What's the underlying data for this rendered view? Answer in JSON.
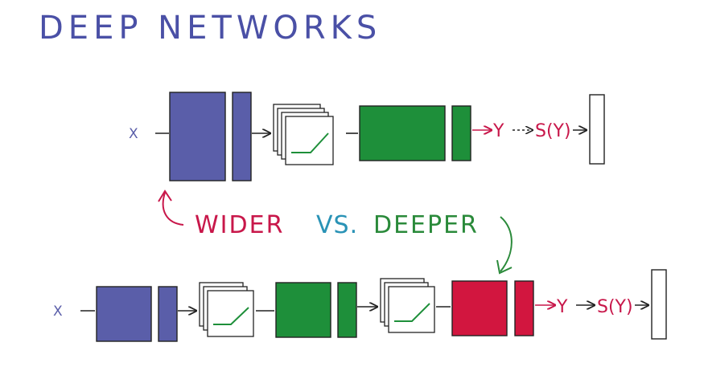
{
  "title": "DEEP NETWORKS",
  "network_wide": {
    "input": "X",
    "output": "Y",
    "softmax": "S(Y)"
  },
  "network_deep": {
    "input": "X",
    "output": "Y",
    "softmax": "S(Y)"
  },
  "comparison": {
    "wider": "WIDER",
    "vs": "VS.",
    "deeper": "DEEPER"
  },
  "colors": {
    "title": "#4a50a6",
    "blue_block": "#5a5ea9",
    "green_block": "#1e8f3a",
    "red_block": "#d2163f",
    "red_text": "#c8174a",
    "teal_text": "#2a93b6",
    "green_text": "#2a8a3a",
    "input_label": "#5a5ea9",
    "stroke": "#222222"
  },
  "icons": {
    "relu": "relu-activation-icon",
    "arrow_wider": "curved-arrow-up-icon",
    "arrow_deeper": "curved-arrow-down-icon"
  }
}
